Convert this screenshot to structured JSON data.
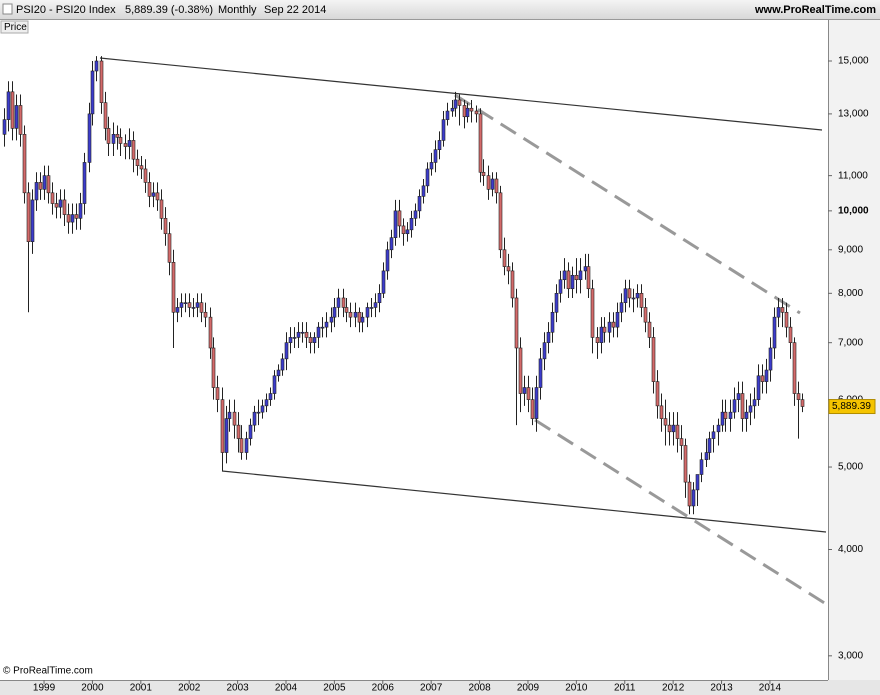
{
  "header": {
    "symbol": "PSI20 - PSI20 Index",
    "last": "5,889.39 (-0.38%)",
    "period": "Monthly",
    "date": "Sep 22 2014",
    "website": "www.ProRealTime.com"
  },
  "footer": "© ProRealTime.com",
  "chart_data": {
    "type": "candlestick",
    "y_label": "Price",
    "log_scale": true,
    "grid": false,
    "up_color": "#3c3ccc",
    "down_color": "#d46a6a",
    "xlim": [
      1998.09,
      2015.2
    ],
    "xticks": [
      1999,
      2000,
      2001,
      2002,
      2003,
      2004,
      2005,
      2006,
      2007,
      2008,
      2009,
      2010,
      2011,
      2012,
      2013,
      2014
    ],
    "ylim": [
      2810,
      16760
    ],
    "yticks": [
      {
        "value": 3000,
        "label": "3,000"
      },
      {
        "value": 4000,
        "label": "4,000"
      },
      {
        "value": 5000,
        "label": "5,000"
      },
      {
        "value": 6000,
        "label": "6,000"
      },
      {
        "value": 7000,
        "label": "7,000"
      },
      {
        "value": 8000,
        "label": "8,000"
      },
      {
        "value": 9000,
        "label": "9,000"
      },
      {
        "value": 10000,
        "label": "10,000"
      },
      {
        "value": 11000,
        "label": "11,000"
      },
      {
        "value": 13000,
        "label": "13,000"
      },
      {
        "value": 15000,
        "label": "15,000"
      }
    ],
    "last_price_label": "5,889.39",
    "x": [
      1998.17,
      1998.25,
      1998.33,
      1998.42,
      1998.5,
      1998.58,
      1998.67,
      1998.75,
      1998.83,
      1998.92,
      1999,
      1999.08,
      1999.17,
      1999.25,
      1999.33,
      1999.42,
      1999.5,
      1999.58,
      1999.67,
      1999.75,
      1999.83,
      1999.92,
      2000,
      2000.08,
      2000.17,
      2000.25,
      2000.33,
      2000.42,
      2000.5,
      2000.58,
      2000.67,
      2000.75,
      2000.83,
      2000.92,
      2001,
      2001.08,
      2001.17,
      2001.25,
      2001.33,
      2001.42,
      2001.5,
      2001.58,
      2001.67,
      2001.75,
      2001.83,
      2001.92,
      2002,
      2002.08,
      2002.17,
      2002.25,
      2002.33,
      2002.42,
      2002.5,
      2002.58,
      2002.67,
      2002.75,
      2002.83,
      2002.92,
      2003,
      2003.08,
      2003.17,
      2003.25,
      2003.33,
      2003.42,
      2003.5,
      2003.58,
      2003.67,
      2003.75,
      2003.83,
      2003.92,
      2004,
      2004.08,
      2004.17,
      2004.25,
      2004.33,
      2004.42,
      2004.5,
      2004.58,
      2004.67,
      2004.75,
      2004.83,
      2004.92,
      2005,
      2005.08,
      2005.17,
      2005.25,
      2005.33,
      2005.42,
      2005.5,
      2005.58,
      2005.67,
      2005.75,
      2005.83,
      2005.92,
      2006,
      2006.08,
      2006.17,
      2006.25,
      2006.33,
      2006.42,
      2006.5,
      2006.58,
      2006.67,
      2006.75,
      2006.83,
      2006.92,
      2007,
      2007.08,
      2007.17,
      2007.25,
      2007.33,
      2007.42,
      2007.5,
      2007.58,
      2007.67,
      2007.75,
      2007.83,
      2007.92,
      2008,
      2008.08,
      2008.17,
      2008.25,
      2008.33,
      2008.42,
      2008.5,
      2008.58,
      2008.67,
      2008.75,
      2008.83,
      2008.92,
      2009,
      2009.08,
      2009.17,
      2009.25,
      2009.33,
      2009.42,
      2009.5,
      2009.58,
      2009.67,
      2009.75,
      2009.83,
      2009.92,
      2010,
      2010.08,
      2010.17,
      2010.25,
      2010.33,
      2010.42,
      2010.5,
      2010.58,
      2010.67,
      2010.75,
      2010.83,
      2010.92,
      2011,
      2011.08,
      2011.17,
      2011.25,
      2011.33,
      2011.42,
      2011.5,
      2011.58,
      2011.67,
      2011.75,
      2011.83,
      2011.92,
      2012,
      2012.08,
      2012.17,
      2012.25,
      2012.33,
      2012.42,
      2012.5,
      2012.58,
      2012.67,
      2012.75,
      2012.83,
      2012.92,
      2013,
      2013.08,
      2013.17,
      2013.25,
      2013.33,
      2013.42,
      2013.5,
      2013.58,
      2013.67,
      2013.75,
      2013.83,
      2013.92,
      2014,
      2014.08,
      2014.17,
      2014.25,
      2014.33,
      2014.42,
      2014.5,
      2014.58,
      2014.67
    ],
    "open": [
      12300,
      12800,
      13800,
      12500,
      13300,
      12300,
      10500,
      9200,
      10300,
      10800,
      10600,
      11000,
      10500,
      10200,
      10100,
      10300,
      9900,
      9700,
      9900,
      9800,
      10200,
      11400,
      13000,
      14600,
      15000,
      13400,
      12500,
      12000,
      12300,
      12200,
      12000,
      11900,
      12100,
      11500,
      11300,
      11200,
      10800,
      10400,
      10500,
      10300,
      9800,
      9400,
      8700,
      7600,
      7700,
      7800,
      7800,
      7700,
      7700,
      7800,
      7600,
      7500,
      6900,
      6200,
      6000,
      5200,
      5700,
      5800,
      5600,
      5400,
      5200,
      5400,
      5600,
      5800,
      5800,
      5900,
      6000,
      6100,
      6400,
      6500,
      6700,
      7000,
      7100,
      7100,
      7200,
      7200,
      7100,
      7000,
      7100,
      7300,
      7300,
      7400,
      7500,
      7700,
      7900,
      7700,
      7600,
      7500,
      7600,
      7400,
      7500,
      7700,
      7700,
      7800,
      8000,
      8500,
      9000,
      9300,
      10000,
      9600,
      9400,
      9500,
      9800,
      10000,
      10400,
      10700,
      11200,
      11400,
      11800,
      12100,
      12800,
      13100,
      13200,
      13500,
      13300,
      12900,
      13200,
      13100,
      13000,
      11100,
      11000,
      10600,
      10900,
      10500,
      9000,
      8600,
      8500,
      7900,
      6900,
      6100,
      6200,
      6000,
      5700,
      6200,
      6700,
      7000,
      7200,
      7600,
      8000,
      8300,
      8500,
      8100,
      8400,
      8300,
      8500,
      8600,
      8100,
      7100,
      7000,
      7300,
      7200,
      7400,
      7300,
      7600,
      7800,
      8100,
      7900,
      7900,
      8000,
      7700,
      7400,
      7100,
      6300,
      5900,
      5700,
      5600,
      5500,
      5600,
      5400,
      5300,
      4800,
      4500,
      4700,
      4900,
      5100,
      5200,
      5400,
      5500,
      5600,
      5800,
      5700,
      5800,
      6000,
      6100,
      5700,
      5800,
      5900,
      6000,
      6400,
      6300,
      6500,
      6900,
      7500,
      7700,
      7600,
      7300,
      7000,
      6100,
      6000
    ],
    "high": [
      13200,
      14200,
      14200,
      13700,
      13700,
      12600,
      10800,
      10600,
      11100,
      11100,
      11300,
      11300,
      10800,
      10500,
      10600,
      10600,
      10200,
      10200,
      10200,
      10500,
      11700,
      13400,
      15000,
      15200,
      15200,
      13800,
      12900,
      12700,
      12600,
      12500,
      12300,
      12500,
      12400,
      11800,
      11600,
      11500,
      11100,
      10800,
      10800,
      10600,
      10100,
      9700,
      9000,
      7900,
      8000,
      8000,
      8000,
      7900,
      8000,
      8000,
      7800,
      7700,
      7100,
      6400,
      6200,
      5900,
      6000,
      6000,
      5800,
      5600,
      5500,
      5700,
      5900,
      6000,
      6000,
      6100,
      6200,
      6500,
      6600,
      6800,
      7200,
      7300,
      7300,
      7400,
      7400,
      7400,
      7200,
      7200,
      7400,
      7500,
      7600,
      7700,
      7900,
      8100,
      8100,
      7900,
      7800,
      7800,
      7700,
      7600,
      7800,
      7900,
      8000,
      8200,
      8700,
      9200,
      9500,
      10300,
      10300,
      9800,
      9700,
      10000,
      10200,
      10600,
      10900,
      11400,
      11700,
      12100,
      12400,
      13100,
      13400,
      13500,
      13800,
      13700,
      13500,
      13400,
      13500,
      13300,
      13200,
      11500,
      11300,
      11100,
      11100,
      10700,
      9300,
      8900,
      8700,
      8100,
      7100,
      6400,
      6400,
      6200,
      6400,
      6900,
      7200,
      7400,
      7800,
      8200,
      8500,
      8800,
      8700,
      8600,
      8800,
      8800,
      8900,
      8900,
      8300,
      7300,
      7500,
      7500,
      7600,
      7600,
      7800,
      8000,
      8300,
      8300,
      8100,
      8200,
      8200,
      7900,
      7600,
      7300,
      6500,
      6100,
      6000,
      5800,
      5800,
      5800,
      5600,
      5400,
      4900,
      4800,
      4900,
      5200,
      5400,
      5500,
      5600,
      5700,
      6000,
      6000,
      6000,
      6200,
      6300,
      6300,
      6000,
      6100,
      6200,
      6600,
      6600,
      6700,
      7100,
      7700,
      7900,
      7900,
      7800,
      7500,
      7100,
      6300,
      6100
    ],
    "low": [
      11900,
      12400,
      12100,
      12100,
      11900,
      10200,
      7600,
      8900,
      10000,
      10300,
      10300,
      10200,
      9900,
      9800,
      9800,
      9600,
      9400,
      9400,
      9500,
      9500,
      9900,
      11100,
      12600,
      14200,
      13000,
      12100,
      11600,
      11600,
      11800,
      11600,
      11500,
      11500,
      11100,
      11000,
      10900,
      10500,
      10100,
      10100,
      10000,
      9500,
      9100,
      8400,
      6900,
      7400,
      7500,
      7600,
      7500,
      7500,
      7500,
      7400,
      7300,
      6700,
      6000,
      5800,
      4950,
      5050,
      5500,
      5400,
      5200,
      5100,
      5100,
      5300,
      5500,
      5600,
      5700,
      5800,
      5900,
      6000,
      6300,
      6400,
      6500,
      6800,
      6900,
      6900,
      7000,
      6900,
      6800,
      6800,
      6900,
      7100,
      7100,
      7200,
      7300,
      7500,
      7500,
      7400,
      7300,
      7300,
      7200,
      7200,
      7300,
      7500,
      7500,
      7600,
      7900,
      8300,
      8800,
      9100,
      9300,
      9100,
      9200,
      9300,
      9600,
      9800,
      10200,
      10500,
      11000,
      11100,
      11500,
      11900,
      12600,
      12900,
      12900,
      12600,
      12500,
      12700,
      12700,
      12700,
      10800,
      10700,
      10300,
      10400,
      10200,
      8800,
      8400,
      8200,
      7700,
      5600,
      5800,
      5900,
      5800,
      5600,
      5500,
      6000,
      6500,
      6800,
      7000,
      7400,
      7800,
      8100,
      7900,
      7900,
      8000,
      8000,
      8300,
      7900,
      6800,
      6700,
      6800,
      7000,
      7000,
      7100,
      7100,
      7400,
      7600,
      7700,
      7600,
      7700,
      7500,
      7200,
      6900,
      6100,
      5700,
      5500,
      5300,
      5300,
      5300,
      5200,
      5100,
      4600,
      4400,
      4400,
      4500,
      4800,
      5000,
      5100,
      5200,
      5300,
      5500,
      5500,
      5500,
      5700,
      5800,
      5500,
      5500,
      5600,
      5700,
      5900,
      6100,
      6100,
      6300,
      6700,
      7300,
      7300,
      7100,
      6700,
      5900,
      5400,
      5800
    ],
    "close": [
      12800,
      13800,
      12500,
      13300,
      12300,
      10500,
      9200,
      10300,
      10800,
      10600,
      11000,
      10500,
      10200,
      10100,
      10300,
      9900,
      9700,
      9900,
      9800,
      10200,
      11400,
      13000,
      14600,
      15000,
      13400,
      12500,
      12000,
      12300,
      12200,
      12000,
      11900,
      12100,
      11500,
      11300,
      11200,
      10800,
      10400,
      10500,
      10300,
      9800,
      9400,
      8700,
      7600,
      7700,
      7800,
      7800,
      7700,
      7700,
      7800,
      7600,
      7500,
      6900,
      6200,
      6000,
      5200,
      5700,
      5800,
      5600,
      5400,
      5200,
      5400,
      5600,
      5800,
      5800,
      5900,
      6000,
      6100,
      6400,
      6500,
      6700,
      7000,
      7100,
      7100,
      7200,
      7200,
      7100,
      7000,
      7100,
      7300,
      7300,
      7400,
      7500,
      7700,
      7900,
      7700,
      7600,
      7500,
      7600,
      7400,
      7500,
      7700,
      7700,
      7800,
      8000,
      8500,
      9000,
      9300,
      10000,
      9600,
      9400,
      9500,
      9800,
      10000,
      10400,
      10700,
      11200,
      11400,
      11800,
      12100,
      12800,
      13100,
      13200,
      13500,
      13300,
      12900,
      13200,
      13100,
      13000,
      11100,
      11000,
      10600,
      10900,
      10500,
      9000,
      8600,
      8500,
      7900,
      6900,
      6100,
      6200,
      6000,
      5700,
      6200,
      6700,
      7000,
      7200,
      7600,
      8000,
      8300,
      8500,
      8100,
      8400,
      8300,
      8500,
      8600,
      8100,
      7100,
      7000,
      7300,
      7200,
      7400,
      7300,
      7600,
      7800,
      8100,
      7900,
      7900,
      8000,
      7700,
      7400,
      7100,
      6300,
      5900,
      5700,
      5600,
      5500,
      5600,
      5400,
      5300,
      4800,
      4500,
      4700,
      4900,
      5100,
      5200,
      5400,
      5500,
      5600,
      5800,
      5700,
      5800,
      6000,
      6100,
      5700,
      5800,
      5900,
      6000,
      6400,
      6300,
      6500,
      6900,
      7500,
      7700,
      7600,
      7300,
      7000,
      6100,
      6000,
      5889.39
    ]
  }
}
